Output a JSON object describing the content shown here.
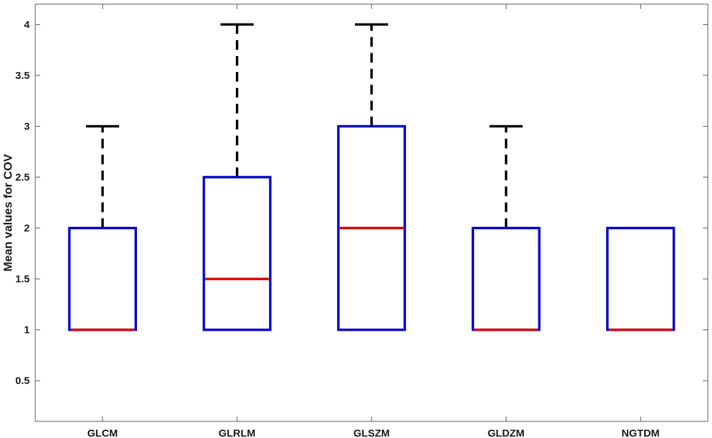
{
  "chart_data": {
    "type": "box",
    "title": "",
    "xlabel": "",
    "ylabel": "Mean values for COV",
    "ylim": [
      0.1,
      4.2
    ],
    "yticks": [
      0.5,
      1,
      1.5,
      2,
      2.5,
      3,
      3.5,
      4
    ],
    "ytick_labels": [
      "0.5",
      "1",
      "1.5",
      "2",
      "2.5",
      "3",
      "3.5",
      "4"
    ],
    "grid": false,
    "colors": {
      "box": "#0000cc",
      "median": "#dd0000",
      "whisker": "#000000",
      "axis": "#555555"
    },
    "categories": [
      "GLCM",
      "GLRLM",
      "GLSZM",
      "GLDZM",
      "NGTDM"
    ],
    "boxes": [
      {
        "label": "GLCM",
        "q1": 1,
        "median": 1,
        "q3": 2,
        "whisker_low": 1,
        "whisker_high": 3
      },
      {
        "label": "GLRLM",
        "q1": 1,
        "median": 1.5,
        "q3": 2.5,
        "whisker_low": 1,
        "whisker_high": 4
      },
      {
        "label": "GLSZM",
        "q1": 1,
        "median": 2,
        "q3": 3,
        "whisker_low": 1,
        "whisker_high": 4
      },
      {
        "label": "GLDZM",
        "q1": 1,
        "median": 1,
        "q3": 2,
        "whisker_low": 1,
        "whisker_high": 3
      },
      {
        "label": "NGTDM",
        "q1": 1,
        "median": 1,
        "q3": 2,
        "whisker_low": 1,
        "whisker_high": 2
      }
    ]
  }
}
